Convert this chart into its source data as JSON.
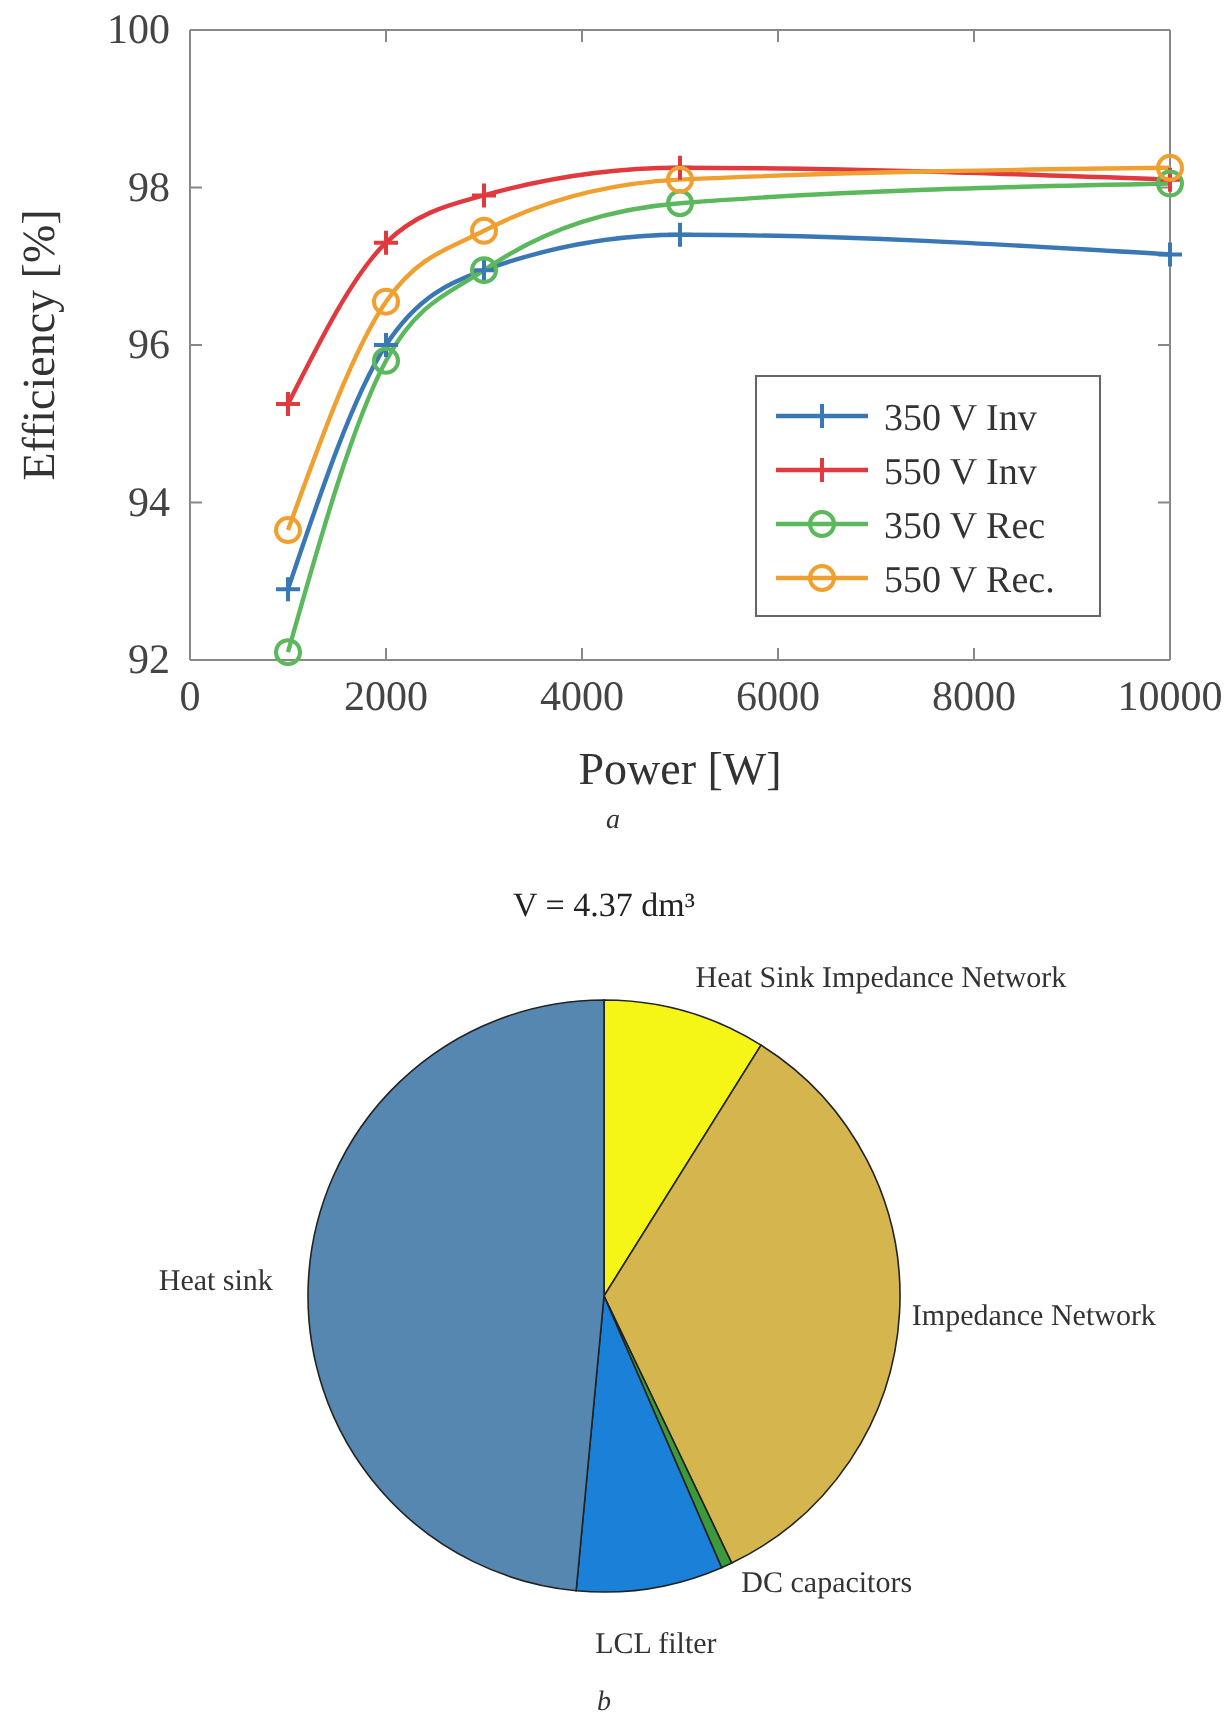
{
  "chart_data": [
    {
      "type": "line",
      "xlabel": "Power [W]",
      "ylabel": "Efficiency [%]",
      "x": [
        1000,
        2000,
        3000,
        5000,
        10000
      ],
      "series": [
        {
          "name": "350 V Inv",
          "color": "#3a78b5",
          "marker": "cross",
          "values": [
            92.9,
            96.0,
            96.95,
            97.4,
            97.15
          ]
        },
        {
          "name": "550 V Inv",
          "color": "#e03a3e",
          "marker": "cross",
          "values": [
            95.25,
            97.3,
            97.9,
            98.25,
            98.1
          ]
        },
        {
          "name": "350 V Rec",
          "color": "#5cb85c",
          "marker": "circle",
          "values": [
            92.1,
            95.8,
            96.95,
            97.8,
            98.05
          ]
        },
        {
          "name": "550 V Rec.",
          "color": "#f0a030",
          "marker": "circle",
          "values": [
            93.65,
            96.55,
            97.45,
            98.1,
            98.25
          ]
        }
      ],
      "xlim": [
        0,
        10000
      ],
      "xticks": [
        0,
        2000,
        4000,
        6000,
        8000,
        10000
      ],
      "ylim": [
        92,
        100
      ],
      "yticks": [
        92,
        94,
        96,
        98,
        100
      ],
      "grid": false,
      "legend": "bottom right",
      "annotations": [
        "a"
      ]
    },
    {
      "type": "pie",
      "title": "V = 4.37 dm³",
      "categories": [
        "Heat Sink Impedance Network",
        "Impedance Network",
        "DC capacitors",
        "LCL filter",
        "Heat sink"
      ],
      "values": [
        8.9,
        34.0,
        0.6,
        8.0,
        48.5
      ],
      "colors": [
        "#f5f516",
        "#d4b54e",
        "#3c9a3c",
        "#1a80d8",
        "#5587b0"
      ],
      "annotations": [
        "b"
      ]
    }
  ]
}
